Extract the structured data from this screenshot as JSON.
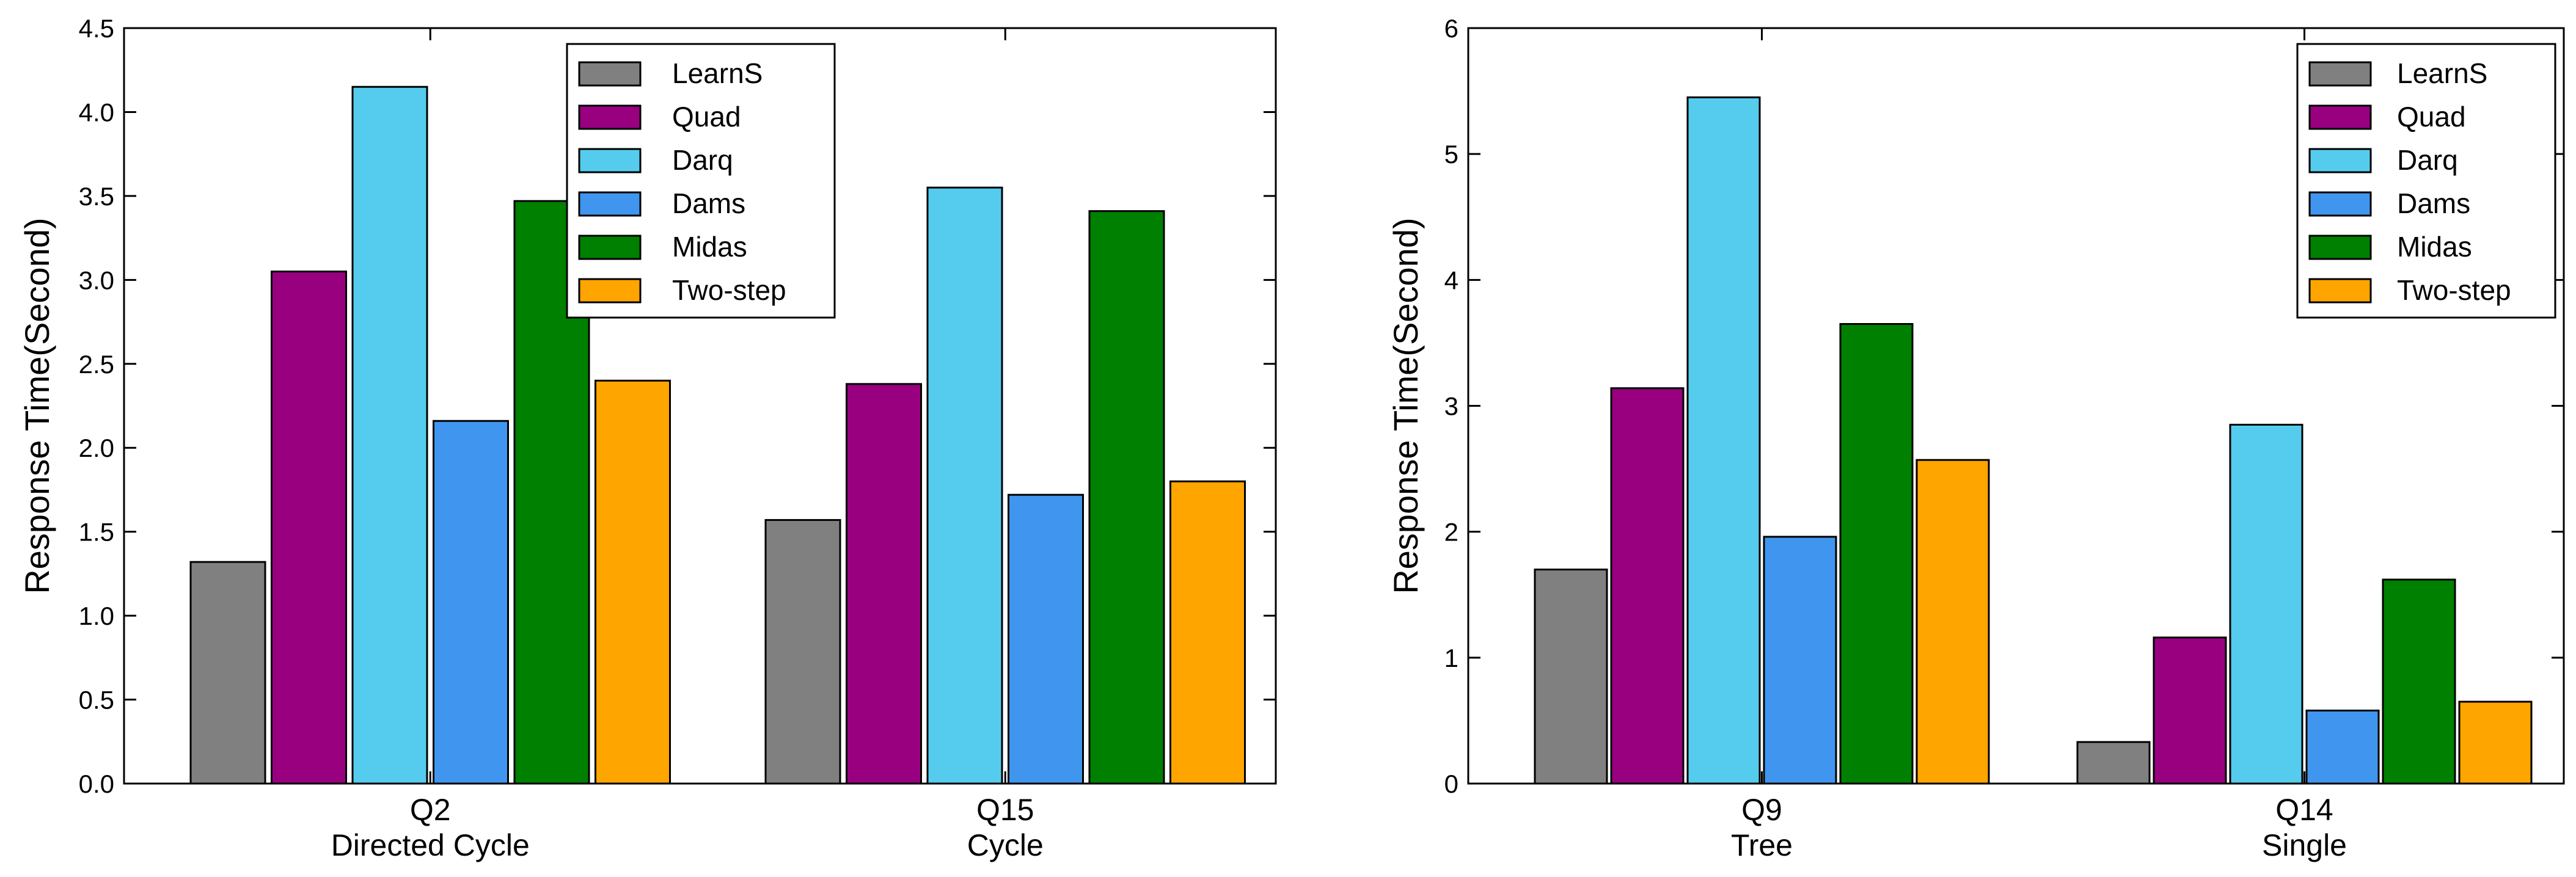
{
  "chart_data": [
    {
      "type": "bar",
      "title": "",
      "xlabel": "",
      "ylabel": "Response Time(Second)",
      "ylim": [
        0,
        4.5
      ],
      "yticks": [
        0.0,
        0.5,
        1.0,
        1.5,
        2.0,
        2.5,
        3.0,
        3.5,
        4.0,
        4.5
      ],
      "ytick_labels": [
        "0.0",
        "0.5",
        "1.0",
        "1.5",
        "2.0",
        "2.5",
        "3.0",
        "3.5",
        "4.0",
        "4.5"
      ],
      "categories": [
        "Q2",
        "Q15"
      ],
      "category_sublabels": [
        "Directed Cycle",
        "Cycle"
      ],
      "legend_position": "top-center",
      "series": [
        {
          "name": "LearnS",
          "color": "#808080",
          "values": [
            1.32,
            1.57
          ]
        },
        {
          "name": "Quad",
          "color": "#990080",
          "values": [
            3.05,
            2.38
          ]
        },
        {
          "name": "Darq",
          "color": "#55ccee",
          "values": [
            4.15,
            3.55
          ]
        },
        {
          "name": "Dams",
          "color": "#4096ee",
          "values": [
            2.16,
            1.72
          ]
        },
        {
          "name": "Midas",
          "color": "#008000",
          "values": [
            3.47,
            3.41
          ]
        },
        {
          "name": "Two-step",
          "color": "#ffa500",
          "values": [
            2.4,
            1.8
          ]
        }
      ]
    },
    {
      "type": "bar",
      "title": "",
      "xlabel": "",
      "ylabel": "Response Time(Second)",
      "ylim": [
        0,
        6
      ],
      "yticks": [
        0,
        1,
        2,
        3,
        4,
        5,
        6
      ],
      "ytick_labels": [
        "0",
        "1",
        "2",
        "3",
        "4",
        "5",
        "6"
      ],
      "categories": [
        "Q9",
        "Q14"
      ],
      "category_sublabels": [
        "Tree",
        "Single"
      ],
      "legend_position": "top-right",
      "series": [
        {
          "name": "LearnS",
          "color": "#808080",
          "values": [
            1.7,
            0.33
          ]
        },
        {
          "name": "Quad",
          "color": "#990080",
          "values": [
            3.14,
            1.16
          ]
        },
        {
          "name": "Darq",
          "color": "#55ccee",
          "values": [
            5.45,
            2.85
          ]
        },
        {
          "name": "Dams",
          "color": "#4096ee",
          "values": [
            1.96,
            0.58
          ]
        },
        {
          "name": "Midas",
          "color": "#008000",
          "values": [
            3.65,
            1.62
          ]
        },
        {
          "name": "Two-step",
          "color": "#ffa500",
          "values": [
            2.57,
            0.65
          ]
        }
      ]
    }
  ]
}
